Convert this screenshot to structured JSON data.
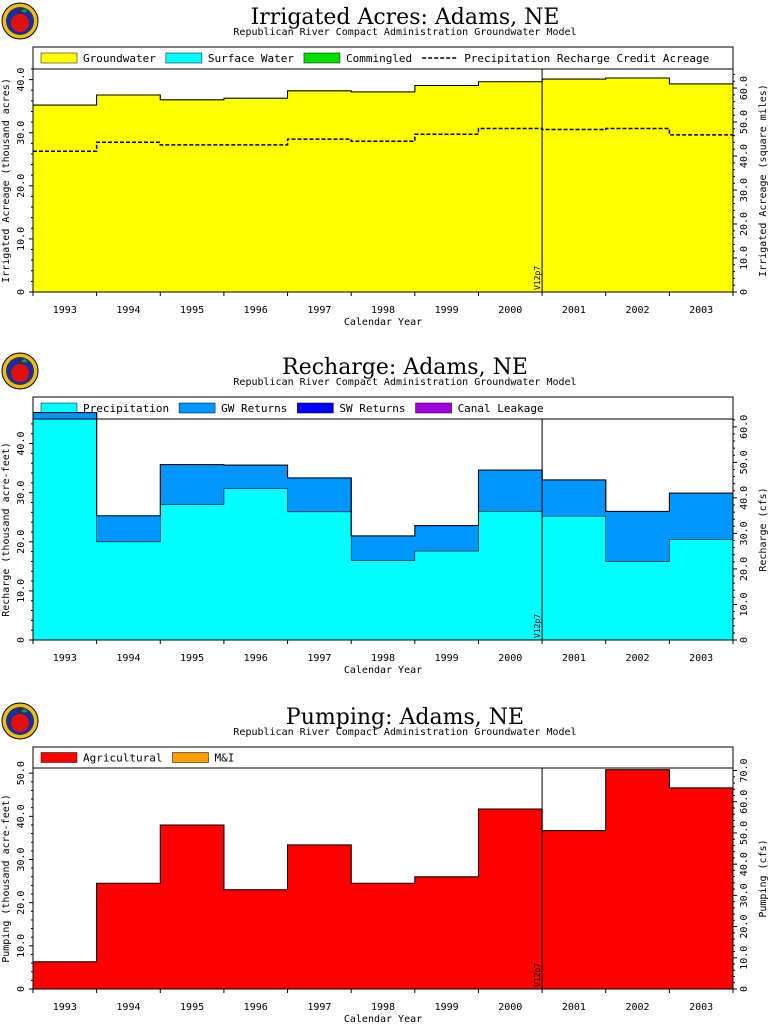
{
  "chart_data": [
    {
      "type": "area",
      "title": "Irrigated Acres: Adams, NE",
      "subtitle": "Republican River Compact Administration Groundwater Model",
      "xlabel": "Calendar Year",
      "ylabel": "Irrigated Acreage (thousand acres)",
      "ylabel_right": "Irrigated Acreage (square miles)",
      "categories": [
        "1993",
        "1994",
        "1995",
        "1996",
        "1997",
        "1998",
        "1999",
        "2000",
        "2001",
        "2002",
        "2003"
      ],
      "ylim": [
        0,
        42
      ],
      "yticks": [
        "0",
        "10.0",
        "20.0",
        "30.0",
        "40.0"
      ],
      "ylim_right": [
        0,
        65.6
      ],
      "yticks_right": [
        "0",
        "10.0",
        "20.0",
        "30.0",
        "40.0",
        "50.0",
        "60.0"
      ],
      "marker_label": "V12p7",
      "marker_after": "2000",
      "legend_position": "top",
      "series": [
        {
          "name": "Groundwater",
          "color": "#ffff00",
          "style": "fill",
          "values": [
            35.2,
            37.1,
            36.2,
            36.5,
            37.9,
            37.7,
            38.9,
            39.6,
            40.1,
            40.3,
            39.2
          ]
        },
        {
          "name": "Surface Water",
          "color": "#00ffff",
          "style": "fill",
          "values": [
            0,
            0,
            0,
            0,
            0,
            0,
            0,
            0,
            0,
            0,
            0
          ]
        },
        {
          "name": "Commingled",
          "color": "#00e000",
          "style": "fill",
          "values": [
            0,
            0,
            0,
            0,
            0,
            0,
            0,
            0,
            0,
            0,
            0
          ]
        },
        {
          "name": "Precipitation Recharge Credit Acreage",
          "color": "#000000",
          "style": "dashed",
          "values": [
            26.5,
            28.2,
            27.7,
            27.7,
            28.8,
            28.4,
            29.7,
            30.8,
            30.6,
            30.8,
            29.6
          ]
        }
      ]
    },
    {
      "type": "area",
      "title": "Recharge: Adams, NE",
      "subtitle": "Republican River Compact Administration Groundwater Model",
      "xlabel": "Calendar Year",
      "ylabel": "Recharge (thousand acre-feet)",
      "ylabel_right": "Recharge (cfs)",
      "categories": [
        "1993",
        "1994",
        "1995",
        "1996",
        "1997",
        "1998",
        "1999",
        "2000",
        "2001",
        "2002",
        "2003"
      ],
      "ylim": [
        0,
        45
      ],
      "yticks": [
        "0",
        "10.0",
        "20.0",
        "30.0",
        "40.0"
      ],
      "ylim_right": [
        0,
        62.2
      ],
      "yticks_right": [
        "0",
        "10.0",
        "20.0",
        "30.0",
        "40.0",
        "50.0",
        "60.0"
      ],
      "marker_label": "V12p7",
      "marker_after": "2000",
      "legend_position": "top",
      "series": [
        {
          "name": "Precipitation",
          "color": "#00ffff",
          "style": "fill",
          "values": [
            45.0,
            20.0,
            27.6,
            30.8,
            26.1,
            16.2,
            18.1,
            26.2,
            25.2,
            16.0,
            20.5
          ]
        },
        {
          "name": "GW Returns",
          "color": "#0096ff",
          "style": "fill",
          "values": [
            1.3,
            5.3,
            8.1,
            4.8,
            6.9,
            5.0,
            5.2,
            8.4,
            7.4,
            10.2,
            9.4
          ]
        },
        {
          "name": "SW Returns",
          "color": "#0000ff",
          "style": "fill",
          "values": [
            0,
            0,
            0,
            0,
            0,
            0,
            0,
            0,
            0,
            0,
            0
          ]
        },
        {
          "name": "Canal Leakage",
          "color": "#a000e0",
          "style": "fill",
          "values": [
            0,
            0,
            0,
            0,
            0,
            0,
            0,
            0,
            0,
            0,
            0
          ]
        }
      ]
    },
    {
      "type": "area",
      "title": "Pumping: Adams, NE",
      "subtitle": "Republican River Compact Administration Groundwater Model",
      "xlabel": "Calendar Year",
      "ylabel": "Pumping (thousand acre-feet)",
      "ylabel_right": "Pumping (cfs)",
      "categories": [
        "1993",
        "1994",
        "1995",
        "1996",
        "1997",
        "1998",
        "1999",
        "2000",
        "2001",
        "2002",
        "2003"
      ],
      "ylim": [
        0,
        51.2
      ],
      "yticks": [
        "0",
        "10.0",
        "20.0",
        "30.0",
        "40.0",
        "50.0"
      ],
      "ylim_right": [
        0,
        70.8
      ],
      "yticks_right": [
        "0",
        "10.0",
        "20.0",
        "30.0",
        "40.0",
        "50.0",
        "60.0",
        "70.0"
      ],
      "marker_label": "V12p7",
      "marker_after": "2000",
      "legend_position": "top",
      "series": [
        {
          "name": "Agricultural",
          "color": "#ff0000",
          "style": "fill",
          "values": [
            6.3,
            24.5,
            38.0,
            23.0,
            33.4,
            24.5,
            26.0,
            41.7,
            36.7,
            50.8,
            46.6
          ]
        },
        {
          "name": "M&I",
          "color": "#ffa000",
          "style": "fill",
          "values": [
            0,
            0,
            0,
            0,
            0,
            0,
            0,
            0,
            0,
            0,
            0
          ]
        }
      ]
    }
  ]
}
